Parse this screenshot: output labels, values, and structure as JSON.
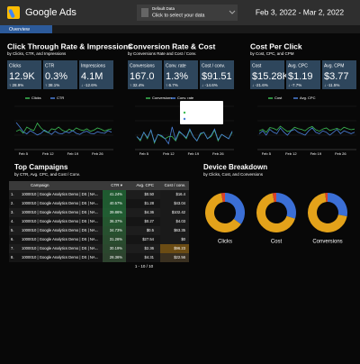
{
  "header": {
    "logo": "Google Ads",
    "data_source": {
      "label": "Default Data",
      "hint": "Click to select your data"
    },
    "date_range": "Feb 3, 2022 - Mar 2, 2022"
  },
  "tabs": [
    "Overview"
  ],
  "sections": [
    {
      "title": "Click Through Rate & Impressions",
      "subtitle": "by Clicks, CTR, and Impressions",
      "scorecards": [
        {
          "label": "Clicks",
          "value": "12.9K",
          "change": "↑ 28.9%",
          "change_color": "#3cba54"
        },
        {
          "label": "CTR",
          "value": "0.3%",
          "change": "↑ 38.1%",
          "change_color": "#3cba54"
        },
        {
          "label": "Impressions",
          "value": "4.1M",
          "change": "↓ -12.6%",
          "change_color": "#e04848"
        }
      ],
      "chart": {
        "type": "line",
        "categories": [
          null,
          null,
          "Feb 5",
          null,
          null,
          null,
          null,
          null,
          null,
          "Feb 12",
          null,
          null,
          null,
          null,
          null,
          null,
          "Feb 19",
          null,
          null,
          null,
          null,
          null,
          null,
          "Feb 26",
          null,
          null,
          null,
          null
        ],
        "ylim": [
          0,
          1000
        ],
        "y2lim": [
          0,
          0.8
        ],
        "series": [
          {
            "name": "Clicks",
            "color": "#3cba54",
            "values": [
              420,
              460,
              380,
              520,
              470,
              440,
              610,
              500,
              430,
              390,
              480,
              460,
              520,
              450,
              410,
              470,
              430,
              500,
              460,
              440,
              480,
              420,
              450,
              500,
              470,
              430,
              460,
              480
            ]
          },
          {
            "name": "CTR",
            "color": "#4a7fd8",
            "axis": "y2",
            "values": [
              0.5,
              0.42,
              0.33,
              0.29,
              0.35,
              0.31,
              0.27,
              0.3,
              0.36,
              0.32,
              0.28,
              0.34,
              0.3,
              0.29,
              0.33,
              0.31,
              0.35,
              0.3,
              0.28,
              0.32,
              0.34,
              0.3,
              0.29,
              0.33,
              0.31,
              0.3,
              0.35,
              0.32
            ]
          }
        ]
      }
    },
    {
      "title": "Conversion Rate & Cost",
      "subtitle": "by Conversions Rate and Cost / Conv.",
      "scorecards": [
        {
          "label": "Conversions",
          "value": "167.0",
          "change": "↑ 32.4%",
          "change_color": "#3cba54"
        },
        {
          "label": "Conv. rate",
          "value": "1.3%",
          "change": "↑ 6.7%",
          "change_color": "#3cba54"
        },
        {
          "label": "Cost / conv.",
          "value": "$91.51",
          "change": "↓ -14.6%",
          "change_color": "#e04848"
        }
      ],
      "chart": {
        "type": "line",
        "categories": [
          null,
          null,
          "Feb 5",
          null,
          null,
          null,
          null,
          null,
          null,
          "Feb 12",
          null,
          null,
          null,
          null,
          null,
          null,
          "Feb 19",
          null,
          null,
          null,
          null,
          null,
          null,
          "Feb 26",
          null,
          null,
          null,
          null
        ],
        "ylim": [
          0,
          20
        ],
        "y2lim": [
          0,
          4
        ],
        "series": [
          {
            "name": "Conversions",
            "color": "#3cba54",
            "values": [
              6,
              4,
              8,
              5,
              9,
              3,
              7,
              6,
              5,
              6,
              6,
              4,
              8,
              7,
              5,
              9,
              6,
              4,
              7,
              8,
              5,
              6,
              9,
              4,
              7,
              6,
              5,
              8
            ]
          },
          {
            "name": "Conv. rate",
            "color": "#4a7fd8",
            "axis": "y2",
            "values": [
              1.2,
              0.9,
              1.6,
              1.1,
              1.8,
              0.7,
              1.4,
              1.3,
              1.0,
              0.53,
              2.1,
              0.9,
              1.7,
              1.4,
              1.1,
              1.9,
              1.2,
              0.8,
              1.5,
              1.6,
              1.0,
              1.3,
              1.9,
              0.9,
              1.4,
              1.2,
              1.0,
              1.7
            ]
          }
        ],
        "tooltip": {
          "title": "Feb 12, 2022",
          "lines": [
            "Conversions: 6",
            "Conv. rate: 0.53%"
          ]
        }
      }
    },
    {
      "title": "Cost Per Click",
      "subtitle": "by Cost, CPC, and CPM",
      "scorecards": [
        {
          "label": "Cost",
          "value": "$15.28K",
          "change": "↓ -21.6%",
          "change_color": "#e04848"
        },
        {
          "label": "Avg. CPC",
          "value": "$1.19",
          "change": "↓ -7.7%",
          "change_color": "#e04848"
        },
        {
          "label": "Avg. CPM",
          "value": "$3.77",
          "change": "↓ -11.5%",
          "change_color": "#e04848"
        }
      ],
      "chart": {
        "type": "line",
        "categories": [
          null,
          null,
          "Feb 5",
          null,
          null,
          null,
          null,
          null,
          null,
          "Feb 12",
          null,
          null,
          null,
          null,
          null,
          null,
          "Feb 19",
          null,
          null,
          null,
          null,
          null,
          null,
          "Feb 26",
          null,
          null,
          null,
          null
        ],
        "ylim": [
          0,
          1200
        ],
        "y2lim": [
          0,
          3
        ],
        "series": [
          {
            "name": "Cost",
            "color": "#3cba54",
            "values": [
              520,
              560,
              480,
              610,
              590,
              540,
              650,
              570,
              500,
              530,
              620,
              580,
              560,
              520,
              600,
              640,
              550,
              510,
              570,
              600,
              530,
              560,
              590,
              540,
              620,
              580,
              550,
              570
            ]
          },
          {
            "name": "Avg. CPC",
            "color": "#4a7fd8",
            "axis": "y2",
            "values": [
              1.1,
              1.3,
              1.0,
              1.4,
              1.2,
              1.1,
              1.5,
              1.2,
              1.0,
              1.3,
              1.4,
              1.2,
              1.1,
              1.0,
              1.3,
              1.5,
              1.2,
              1.1,
              1.3,
              1.2,
              1.0,
              1.2,
              1.4,
              1.1,
              1.3,
              1.2,
              1.1,
              1.2
            ]
          }
        ]
      }
    }
  ],
  "campaigns": {
    "title": "Top Campaigns",
    "subtitle": "by CTR, Avg. CPC, and Cost / Conv.",
    "columns": [
      "Campaign",
      "CTR ▾",
      "Avg. CPC",
      "Cost / conv."
    ],
    "rows": [
      [
        "1.",
        "1000010 | Google Analytics Demo | DS | NA...",
        "41.24%",
        "$0.50",
        "$16.4"
      ],
      [
        "2.",
        "1000010 | Google Analytics Demo | DS | NA...",
        "40.57%",
        "$1.28",
        "$43.04"
      ],
      [
        "3.",
        "1000010 | Google Analytics Demo | DS | NA...",
        "39.86%",
        "$4.36",
        "$102.42"
      ],
      [
        "4.",
        "1000010 | Google Analytics Demo | DS | NA...",
        "36.37%",
        "$0.27",
        "$4.03"
      ],
      [
        "5.",
        "1000010 | Google Analytics Demo | DS | NA...",
        "34.73%",
        "$0.5",
        "$63.35"
      ],
      [
        "6.",
        "1000010 | Google Analytics Demo | DS | NA...",
        "31.26%",
        "$27.54",
        "$0"
      ],
      [
        "7.",
        "1000010 | Google Analytics Demo | DS | NA...",
        "30.19%",
        "$2.36",
        "$96.23"
      ],
      [
        "8.",
        "1000010 | Google Analytics Demo | DS | NA...",
        "28.36%",
        "$4.31",
        "$22.56"
      ]
    ],
    "pagination": "1 - 10 / 10"
  },
  "devices": {
    "title": "Device Breakdown",
    "subtitle": "by Clicks, Cost, and Conversions",
    "charts": [
      {
        "label": "Clicks",
        "type": "pie",
        "values": [
          35,
          62,
          3
        ],
        "colors": [
          "#3b6fd6",
          "#e3a21a",
          "#d9412b"
        ]
      },
      {
        "label": "Cost",
        "type": "pie",
        "values": [
          30,
          67,
          3
        ],
        "colors": [
          "#3b6fd6",
          "#e3a21a",
          "#d9412b"
        ]
      },
      {
        "label": "Conversions",
        "type": "pie",
        "values": [
          28,
          70,
          2
        ],
        "colors": [
          "#3b6fd6",
          "#e3a21a",
          "#d9412b"
        ]
      }
    ]
  }
}
